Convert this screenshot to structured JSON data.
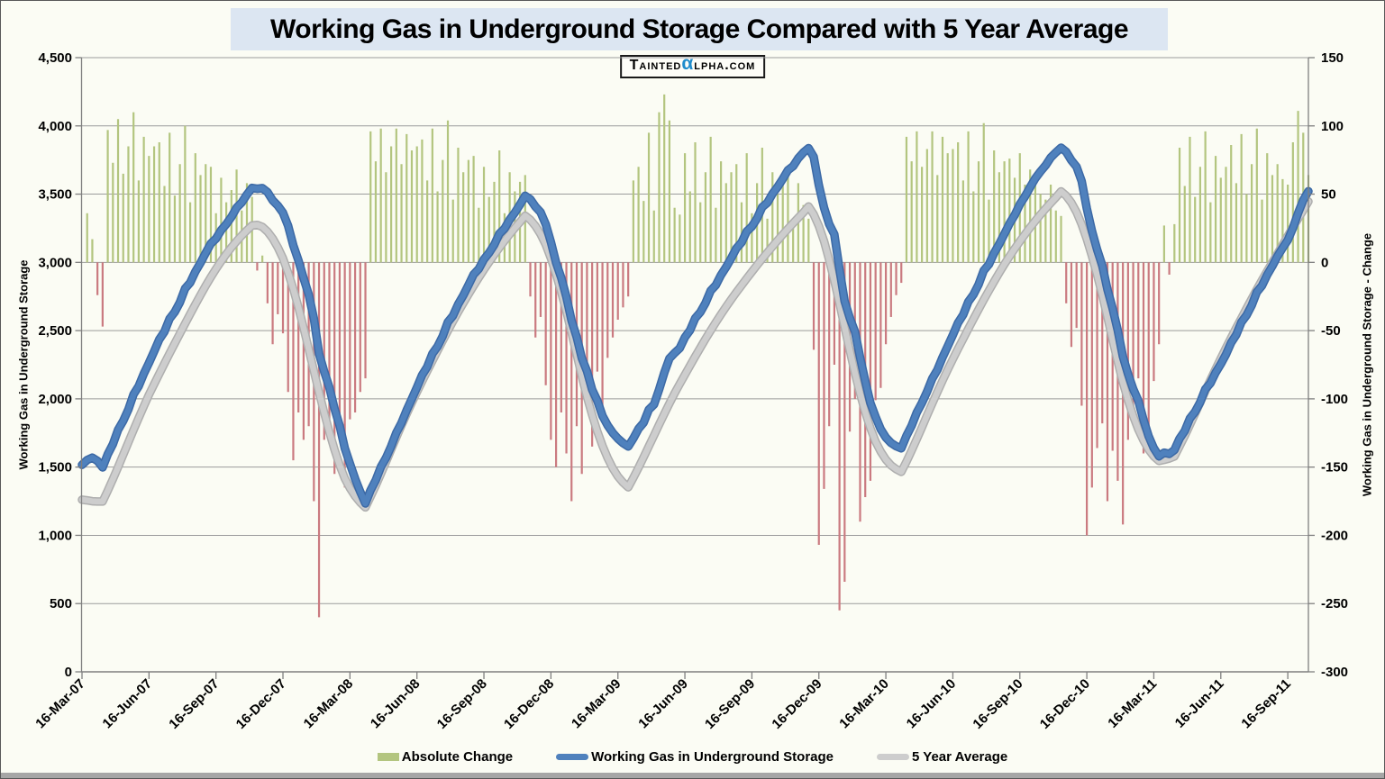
{
  "title": "Working Gas in Underground Storage Compared with 5 Year Average",
  "logo": {
    "part1": "Tainted",
    "alpha": "α",
    "part2": "lpha.com"
  },
  "axes": {
    "left_title": "Working Gas in Underground Storage",
    "right_title": "Working Gas in Underground Storage - Change"
  },
  "legend": [
    {
      "label": "Absolute Change",
      "swatch": "bar",
      "color": "#b3c57f"
    },
    {
      "label": "Working Gas in Underground Storage",
      "swatch": "line",
      "color": "#4f81bd"
    },
    {
      "label": "5 Year Average",
      "swatch": "line",
      "color": "#cdcdcd"
    }
  ],
  "colors": {
    "positive_bar": "#b3c57f",
    "negative_bar": "#ca7a80",
    "storage_line": "#4f81bd",
    "storage_line_edge": "#3c69a5",
    "avg_line": "#cdcdcd",
    "avg_line_edge": "#aeaeae",
    "gridline": "#9b9b9b",
    "axis": "#7f7f7f",
    "alpha_logo": "#1f8ccc",
    "title_background": "#dce6f2",
    "page_background": "#fbfcf4"
  },
  "chart_data": {
    "type": "combo",
    "description": "Weekly working gas in underground storage (Bcf, left axis), its 5-year average, and weekly absolute change (right axis) from 16-Mar-07 to 07-Oct-11. Lines are weekly; bar values equal series.storage.weekly_changes plotted on the right axis.",
    "x_tick_labels": [
      "16-Mar-07",
      "16-Jun-07",
      "16-Sep-07",
      "16-Dec-07",
      "16-Mar-08",
      "16-Jun-08",
      "16-Sep-08",
      "16-Dec-08",
      "16-Mar-09",
      "16-Jun-09",
      "16-Sep-09",
      "16-Dec-09",
      "16-Mar-10",
      "16-Jun-10",
      "16-Sep-10",
      "16-Dec-10",
      "16-Mar-11",
      "16-Jun-11",
      "16-Sep-11"
    ],
    "weeks_per_tick": 13,
    "total_weeks": 238,
    "left_axis": {
      "min": 0,
      "max": 4500,
      "step": 500,
      "tick_labels": [
        "0",
        "500",
        "1,000",
        "1,500",
        "2,000",
        "2,500",
        "3,000",
        "3,500",
        "4,000",
        "4,500"
      ]
    },
    "right_axis": {
      "min": -300,
      "max": 150,
      "step": 50,
      "tick_labels": [
        "-300",
        "-250",
        "-200",
        "-150",
        "-100",
        "-50",
        "0",
        "50",
        "100",
        "150"
      ]
    },
    "grid": true,
    "legend_position": "bottom",
    "series": {
      "storage": {
        "name": "Working Gas in Underground Storage",
        "start_value": 1516,
        "weekly_changes": [
          36,
          17,
          -24,
          -47,
          97,
          73,
          105,
          65,
          85,
          110,
          60,
          92,
          78,
          85,
          88,
          56,
          95,
          49,
          72,
          100,
          44,
          80,
          64,
          72,
          70,
          36,
          62,
          44,
          53,
          68,
          38,
          58,
          48,
          -6,
          5,
          -30,
          -60,
          -38,
          -52,
          -95,
          -145,
          -110,
          -130,
          -120,
          -175,
          -260,
          -130,
          -115,
          -155,
          -125,
          -165,
          -115,
          -110,
          -95,
          -85,
          96,
          74,
          98,
          66,
          85,
          98,
          72,
          94,
          82,
          85,
          90,
          60,
          98,
          52,
          75,
          104,
          46,
          84,
          66,
          75,
          78,
          40,
          70,
          48,
          59,
          82,
          36,
          66,
          52,
          59,
          64,
          -25,
          -55,
          -40,
          -90,
          -130,
          -150,
          -110,
          -140,
          -175,
          -120,
          -155,
          -95,
          -135,
          -80,
          -112,
          -70,
          -55,
          -42,
          -33,
          -25,
          60,
          70,
          45,
          95,
          38,
          110,
          123,
          104,
          40,
          35,
          80,
          52,
          88,
          44,
          66,
          92,
          40,
          74,
          58,
          66,
          72,
          44,
          80,
          36,
          58,
          84,
          32,
          66,
          50,
          58,
          64,
          30,
          58,
          42,
          32,
          -64,
          -207,
          -166,
          -120,
          -75,
          -255,
          -234,
          -124,
          -100,
          -190,
          -172,
          -160,
          -101,
          -92,
          -60,
          -40,
          -24,
          -15,
          92,
          74,
          96,
          70,
          83,
          96,
          64,
          92,
          80,
          83,
          88,
          60,
          96,
          52,
          74,
          102,
          46,
          82,
          66,
          74,
          76,
          62,
          80,
          57,
          68,
          64,
          50,
          46,
          57,
          38,
          34,
          -30,
          -62,
          -48,
          -105,
          -200,
          -165,
          -136,
          -118,
          -175,
          -138,
          -160,
          -192,
          -130,
          -110,
          -85,
          -140,
          -120,
          -87,
          -60,
          27,
          -9,
          28,
          84,
          56,
          92,
          48,
          70,
          96,
          44,
          78,
          62,
          70,
          86,
          58,
          94,
          50,
          72,
          98,
          46,
          80,
          64,
          72,
          61,
          57,
          88,
          111,
          95,
          64
        ]
      },
      "five_year_average": {
        "name": "5 Year Average",
        "start_value": 1261,
        "weekly_changes": [
          -5,
          -6,
          -2,
          0,
          80,
          84,
          88,
          90,
          92,
          90,
          88,
          86,
          84,
          78,
          76,
          75,
          74,
          73,
          73,
          72,
          71,
          70,
          69,
          67,
          64,
          60,
          56,
          53,
          49,
          45,
          42,
          38,
          35,
          5,
          -15,
          -35,
          -50,
          -65,
          -80,
          -105,
          -120,
          -135,
          -150,
          -155,
          -160,
          -158,
          -150,
          -140,
          -128,
          -114,
          -98,
          -72,
          -58,
          -46,
          -36,
          78,
          82,
          86,
          88,
          90,
          89,
          87,
          85,
          82,
          79,
          77,
          76,
          75,
          74,
          73,
          72,
          70,
          68,
          66,
          64,
          62,
          60,
          58,
          56,
          54,
          52,
          50,
          48,
          46,
          44,
          46,
          -30,
          -45,
          -60,
          -78,
          -100,
          -116,
          -130,
          -142,
          -156,
          -160,
          -158,
          -152,
          -132,
          -120,
          -106,
          -90,
          -75,
          -60,
          -45,
          -35,
          70,
          74,
          77,
          79,
          80,
          80,
          78,
          76,
          74,
          69,
          68,
          67,
          66,
          65,
          64,
          62,
          60,
          58,
          56,
          54,
          52,
          51,
          50,
          49,
          48,
          47,
          46,
          45,
          44,
          43,
          42,
          41,
          40,
          39,
          44,
          -58,
          -85,
          -112,
          -138,
          -152,
          -165,
          -175,
          -172,
          -165,
          -150,
          -135,
          -117,
          -98,
          -75,
          -58,
          -42,
          -28,
          -20,
          76,
          80,
          84,
          86,
          88,
          87,
          85,
          83,
          80,
          77,
          75,
          74,
          73,
          72,
          71,
          70,
          68,
          66,
          64,
          62,
          58,
          56,
          54,
          52,
          50,
          48,
          46,
          44,
          42,
          40,
          44,
          -32,
          -50,
          -70,
          -90,
          -108,
          -124,
          -138,
          -148,
          -162,
          -165,
          -160,
          -152,
          -132,
          -116,
          -98,
          -80,
          -66,
          -50,
          -34,
          8,
          10,
          15,
          74,
          77,
          80,
          82,
          83,
          83,
          82,
          80,
          78,
          76,
          74,
          73,
          72,
          71,
          70,
          69,
          68,
          66,
          64,
          62,
          66,
          65,
          64,
          63,
          62,
          64
        ]
      },
      "absolute_change": {
        "name": "Absolute Change",
        "values_source": "storage.weekly_changes",
        "axis": "right"
      }
    },
    "key_points": {
      "storage_peaks": [
        [
          "02-Nov-07",
          3545
        ],
        [
          "07-Nov-08",
          3488
        ],
        [
          "27-Nov-09",
          3837
        ],
        [
          "05-Nov-10",
          3840
        ]
      ],
      "storage_troughs": [
        [
          "04-Apr-08",
          1234
        ],
        [
          "27-Mar-09",
          1651
        ],
        [
          "02-Apr-10",
          1638
        ],
        [
          "18-Mar-11",
          1579
        ]
      ],
      "storage_end": [
        "07-Oct-11",
        3521
      ],
      "avg_peaks": [
        [
          "02-Nov-07",
          3270
        ],
        [
          "07-Nov-08",
          3342
        ],
        [
          "27-Nov-09",
          3410
        ],
        [
          "05-Nov-10",
          3520
        ]
      ],
      "avg_end": [
        "07-Oct-11",
        3446
      ],
      "largest_injection": 123,
      "largest_withdrawal": -260
    }
  }
}
